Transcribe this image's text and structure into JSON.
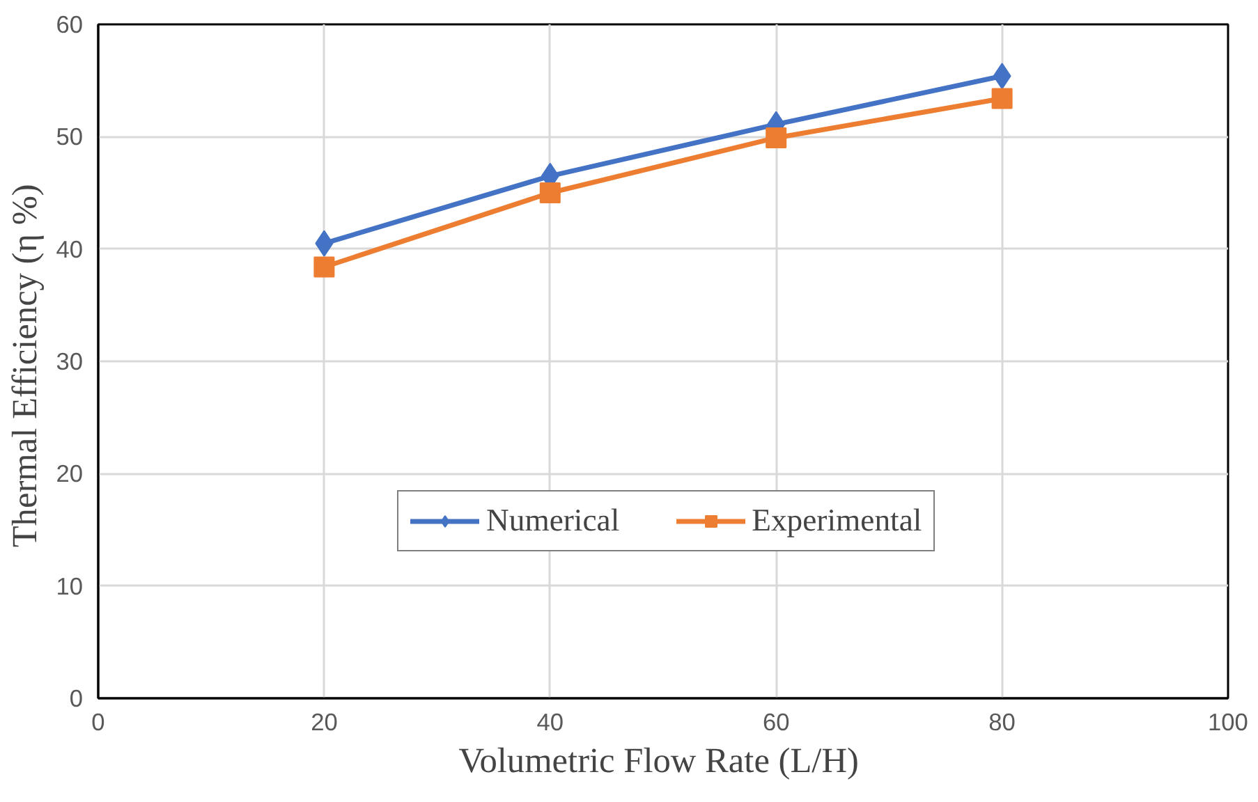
{
  "chart_data": {
    "type": "line",
    "xlabel": "Volumetric  Flow Rate (L/H)",
    "ylabel": "Thermal Efficiency  (η %)",
    "x": [
      20,
      40,
      60,
      80
    ],
    "series": [
      {
        "name": "Numerical",
        "color": "#4472c4",
        "values": [
          40.5,
          46.5,
          51.1,
          55.4
        ],
        "marker": "diamond"
      },
      {
        "name": "Experimental",
        "color": "#ed7d31",
        "values": [
          38.4,
          45.0,
          49.9,
          53.4
        ],
        "marker": "square"
      }
    ],
    "xlim": [
      0,
      100
    ],
    "xticks": [
      0,
      20,
      40,
      60,
      80,
      100
    ],
    "ylim": [
      0,
      60
    ],
    "yticks": [
      0,
      10,
      20,
      30,
      40,
      50,
      60
    ],
    "grid": true,
    "legend": "bottom",
    "line_style": "solid"
  }
}
